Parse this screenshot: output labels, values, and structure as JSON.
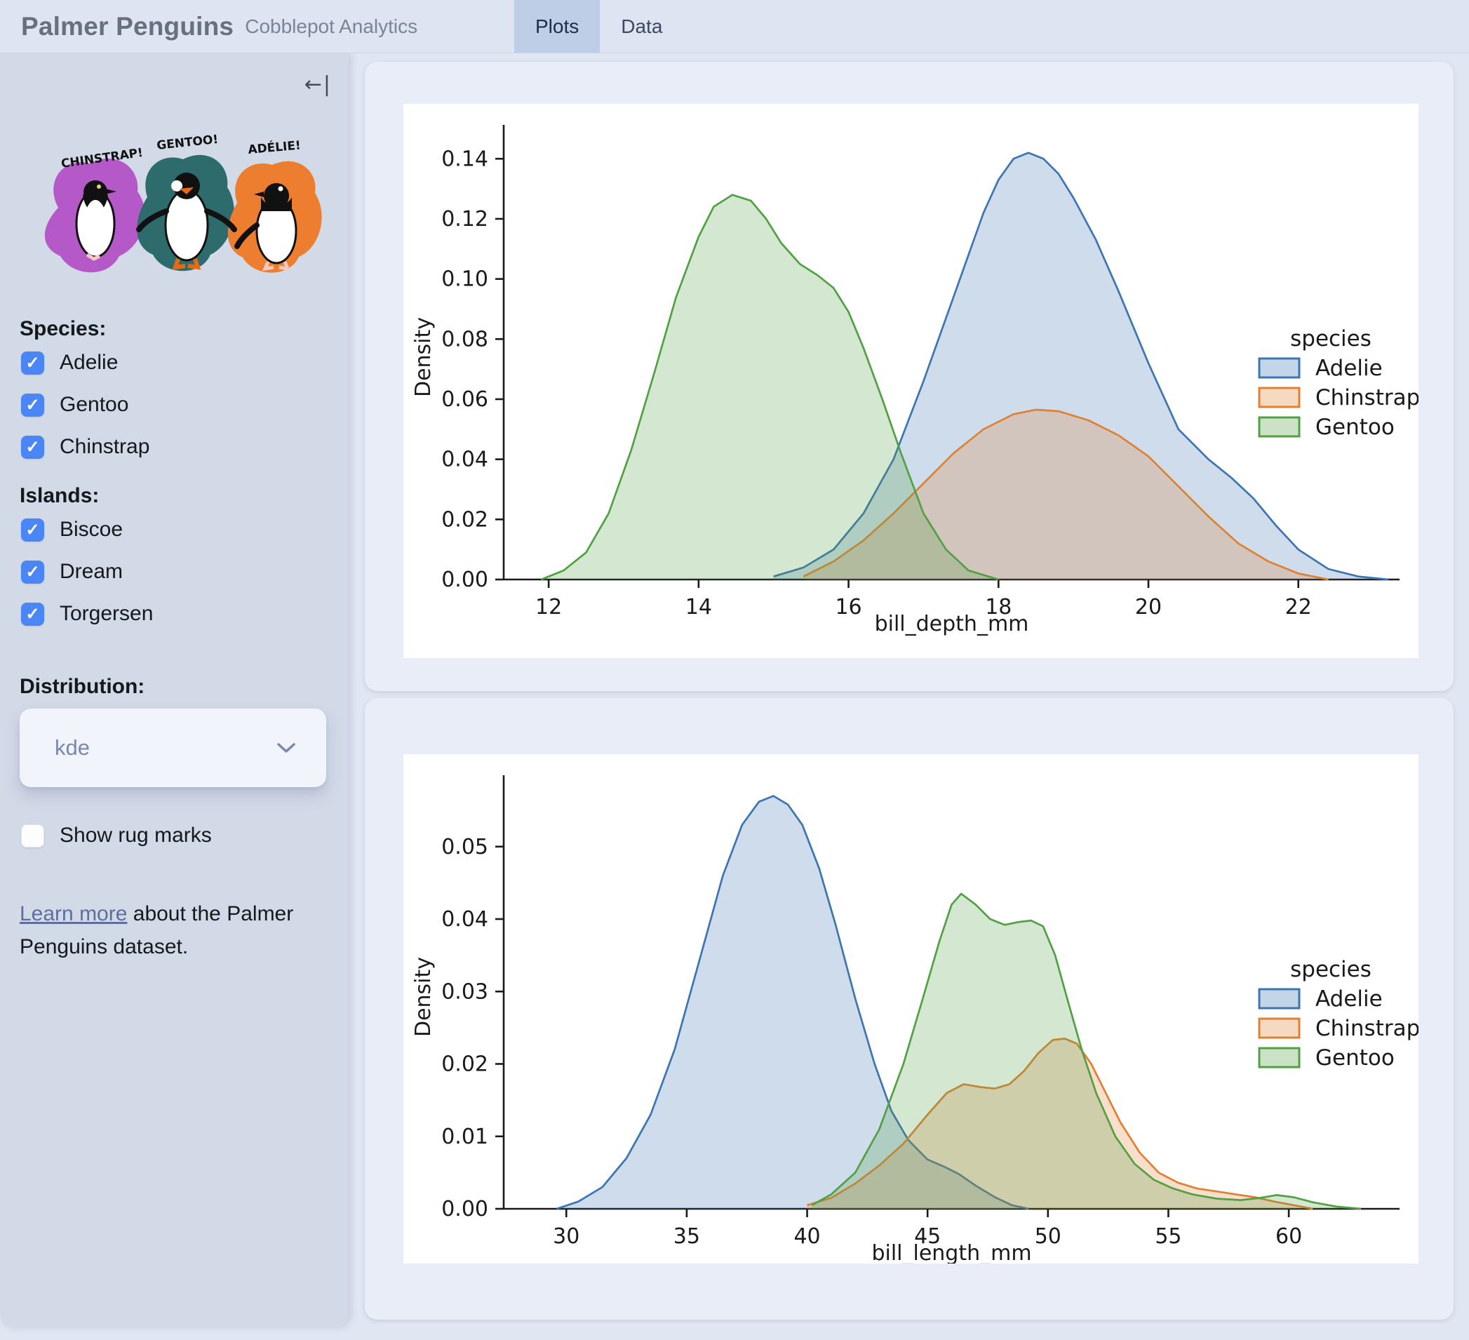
{
  "header": {
    "app_title": "Palmer Penguins",
    "subtitle": "Cobblepot Analytics",
    "tabs": [
      {
        "label": "Plots",
        "active": true
      },
      {
        "label": "Data",
        "active": false
      }
    ]
  },
  "sidebar": {
    "collapse_icon": "←|",
    "artwork": {
      "labels": [
        "CHINSTRAP!",
        "GENTOO!",
        "ADÉLIE!"
      ],
      "blob_colors": [
        "#b659c8",
        "#2e6b6c",
        "#ee7e2f"
      ]
    },
    "species": {
      "heading": "Species:",
      "items": [
        {
          "label": "Adelie",
          "checked": true
        },
        {
          "label": "Gentoo",
          "checked": true
        },
        {
          "label": "Chinstrap",
          "checked": true
        }
      ]
    },
    "islands": {
      "heading": "Islands:",
      "items": [
        {
          "label": "Biscoe",
          "checked": true
        },
        {
          "label": "Dream",
          "checked": true
        },
        {
          "label": "Torgersen",
          "checked": true
        }
      ]
    },
    "distribution": {
      "heading": "Distribution:",
      "value": "kde"
    },
    "rug": {
      "label": "Show rug marks",
      "checked": false
    },
    "footer": {
      "link_text": "Learn more",
      "text_after": " about the Palmer Penguins dataset."
    },
    "accent_color": "#4a86f5"
  },
  "chart_data": [
    {
      "type": "area",
      "kind": "kde-density",
      "xlabel": "bill_depth_mm",
      "ylabel": "Density",
      "xlim": [
        11.4,
        23.35
      ],
      "ylim": [
        0,
        0.148
      ],
      "grid": false,
      "xticks": {
        "values": [
          12,
          14,
          16,
          18,
          20,
          22
        ],
        "labels": [
          "12",
          "14",
          "16",
          "18",
          "20",
          "22"
        ]
      },
      "yticks": {
        "values": [
          0,
          0.02,
          0.04,
          0.06,
          0.08,
          0.1,
          0.12,
          0.14
        ],
        "labels": [
          "0.00",
          "0.02",
          "0.04",
          "0.06",
          "0.08",
          "0.10",
          "0.12",
          "0.14"
        ]
      },
      "legend": {
        "title": "species",
        "position": "right",
        "entries": [
          {
            "label": "Adelie",
            "color": "#3c75b0"
          },
          {
            "label": "Chinstrap",
            "color": "#e08032"
          },
          {
            "label": "Gentoo",
            "color": "#52a044"
          }
        ]
      },
      "series": [
        {
          "name": "Adelie",
          "color": "#3c75b0",
          "x": [
            15.0,
            15.4,
            15.8,
            16.2,
            16.6,
            17.0,
            17.4,
            17.8,
            18.0,
            18.2,
            18.4,
            18.6,
            18.8,
            19.0,
            19.3,
            19.6,
            20.0,
            20.4,
            20.8,
            21.1,
            21.4,
            21.7,
            22.0,
            22.4,
            22.8,
            23.2
          ],
          "y": [
            0.001,
            0.004,
            0.01,
            0.022,
            0.04,
            0.066,
            0.094,
            0.122,
            0.133,
            0.14,
            0.142,
            0.14,
            0.135,
            0.127,
            0.113,
            0.096,
            0.072,
            0.05,
            0.04,
            0.034,
            0.027,
            0.018,
            0.01,
            0.0035,
            0.001,
            0.0
          ]
        },
        {
          "name": "Chinstrap",
          "color": "#e08032",
          "x": [
            15.4,
            15.8,
            16.2,
            16.6,
            17.0,
            17.4,
            17.8,
            18.2,
            18.5,
            18.8,
            19.2,
            19.6,
            20.0,
            20.4,
            20.8,
            21.2,
            21.6,
            22.0,
            22.4
          ],
          "y": [
            0.001,
            0.006,
            0.013,
            0.022,
            0.032,
            0.042,
            0.05,
            0.055,
            0.0565,
            0.056,
            0.053,
            0.048,
            0.041,
            0.031,
            0.021,
            0.012,
            0.006,
            0.002,
            0.0
          ]
        },
        {
          "name": "Gentoo",
          "color": "#52a044",
          "x": [
            11.9,
            12.2,
            12.5,
            12.8,
            13.1,
            13.4,
            13.7,
            14.0,
            14.2,
            14.45,
            14.7,
            14.9,
            15.1,
            15.35,
            15.6,
            15.8,
            16.0,
            16.2,
            16.45,
            16.7,
            17.0,
            17.3,
            17.6,
            18.0
          ],
          "y": [
            0.0,
            0.003,
            0.009,
            0.022,
            0.043,
            0.068,
            0.094,
            0.114,
            0.124,
            0.128,
            0.126,
            0.12,
            0.112,
            0.105,
            0.101,
            0.097,
            0.089,
            0.077,
            0.06,
            0.042,
            0.022,
            0.01,
            0.003,
            0.0
          ]
        }
      ]
    },
    {
      "type": "area",
      "kind": "kde-density",
      "xlabel": "bill_length_mm",
      "ylabel": "Density",
      "xlim": [
        27.4,
        64.6
      ],
      "ylim": [
        0,
        0.0585
      ],
      "grid": false,
      "xticks": {
        "values": [
          30,
          35,
          40,
          45,
          50,
          55,
          60
        ],
        "labels": [
          "30",
          "35",
          "40",
          "45",
          "50",
          "55",
          "60"
        ]
      },
      "yticks": {
        "values": [
          0,
          0.01,
          0.02,
          0.03,
          0.04,
          0.05
        ],
        "labels": [
          "0.00",
          "0.01",
          "0.02",
          "0.03",
          "0.04",
          "0.05"
        ]
      },
      "legend": {
        "title": "species",
        "position": "right",
        "entries": [
          {
            "label": "Adelie",
            "color": "#3c75b0"
          },
          {
            "label": "Chinstrap",
            "color": "#e08032"
          },
          {
            "label": "Gentoo",
            "color": "#52a044"
          }
        ]
      },
      "series": [
        {
          "name": "Adelie",
          "color": "#3c75b0",
          "x": [
            29.6,
            30.5,
            31.5,
            32.5,
            33.5,
            34.5,
            35.5,
            36.5,
            37.3,
            38.0,
            38.6,
            39.2,
            39.8,
            40.5,
            41.2,
            42.0,
            42.8,
            43.5,
            44.2,
            45.0,
            45.7,
            46.3,
            47.0,
            47.8,
            48.5,
            49.2
          ],
          "y": [
            0.0,
            0.001,
            0.003,
            0.007,
            0.013,
            0.022,
            0.034,
            0.046,
            0.053,
            0.0562,
            0.057,
            0.0558,
            0.053,
            0.047,
            0.039,
            0.029,
            0.02,
            0.0135,
            0.0095,
            0.0068,
            0.0058,
            0.0048,
            0.0032,
            0.0016,
            0.0005,
            0.0
          ]
        },
        {
          "name": "Chinstrap",
          "color": "#e08032",
          "x": [
            40.0,
            41.0,
            42.0,
            43.0,
            44.0,
            45.0,
            45.8,
            46.5,
            47.2,
            47.8,
            48.4,
            49.0,
            49.6,
            50.2,
            50.7,
            51.2,
            51.8,
            52.4,
            53.0,
            53.8,
            54.6,
            55.4,
            56.2,
            57.0,
            57.8,
            58.6,
            59.4,
            60.2,
            61.0
          ],
          "y": [
            0.0005,
            0.0015,
            0.0035,
            0.006,
            0.009,
            0.013,
            0.016,
            0.0172,
            0.0168,
            0.0166,
            0.0172,
            0.019,
            0.0215,
            0.0233,
            0.0235,
            0.0228,
            0.02,
            0.016,
            0.012,
            0.0078,
            0.005,
            0.0036,
            0.0028,
            0.0024,
            0.002,
            0.0016,
            0.001,
            0.0005,
            0.0
          ]
        },
        {
          "name": "Gentoo",
          "color": "#52a044",
          "x": [
            40.2,
            41.0,
            42.0,
            43.0,
            44.0,
            44.8,
            45.5,
            46.0,
            46.4,
            47.0,
            47.6,
            48.2,
            48.8,
            49.3,
            49.8,
            50.3,
            50.8,
            51.4,
            52.0,
            52.8,
            53.6,
            54.4,
            55.2,
            56.0,
            57.0,
            58.0,
            58.8,
            59.5,
            60.2,
            61.0,
            62.0,
            63.0
          ],
          "y": [
            0.0005,
            0.002,
            0.005,
            0.011,
            0.02,
            0.029,
            0.037,
            0.042,
            0.0435,
            0.042,
            0.04,
            0.0392,
            0.0396,
            0.0398,
            0.039,
            0.035,
            0.029,
            0.022,
            0.016,
            0.01,
            0.0062,
            0.004,
            0.0028,
            0.002,
            0.0014,
            0.0012,
            0.0015,
            0.0019,
            0.0016,
            0.0009,
            0.0003,
            0.0
          ]
        }
      ]
    }
  ]
}
